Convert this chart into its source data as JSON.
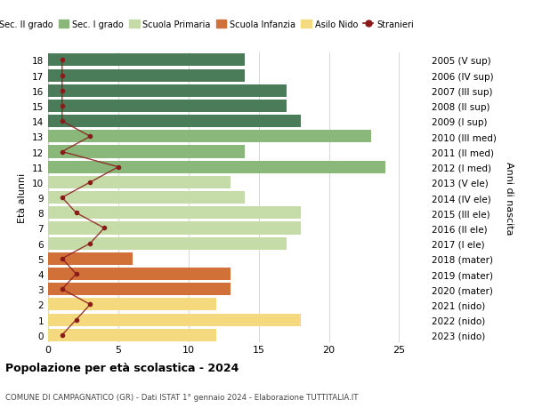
{
  "ages": [
    18,
    17,
    16,
    15,
    14,
    13,
    12,
    11,
    10,
    9,
    8,
    7,
    6,
    5,
    4,
    3,
    2,
    1,
    0
  ],
  "anni_nascita": [
    "2005 (V sup)",
    "2006 (IV sup)",
    "2007 (III sup)",
    "2008 (II sup)",
    "2009 (I sup)",
    "2010 (III med)",
    "2011 (II med)",
    "2012 (I med)",
    "2013 (V ele)",
    "2014 (IV ele)",
    "2015 (III ele)",
    "2016 (II ele)",
    "2017 (I ele)",
    "2018 (mater)",
    "2019 (mater)",
    "2020 (mater)",
    "2021 (nido)",
    "2022 (nido)",
    "2023 (nido)"
  ],
  "bar_values": [
    14,
    14,
    17,
    17,
    18,
    23,
    14,
    24,
    13,
    14,
    18,
    18,
    17,
    6,
    13,
    13,
    12,
    18,
    12
  ],
  "bar_colors": [
    "#4a7c59",
    "#4a7c59",
    "#4a7c59",
    "#4a7c59",
    "#4a7c59",
    "#8ab87a",
    "#8ab87a",
    "#8ab87a",
    "#c5dba8",
    "#c5dba8",
    "#c5dba8",
    "#c5dba8",
    "#c5dba8",
    "#d2703a",
    "#d2703a",
    "#d2703a",
    "#f5d97e",
    "#f5d97e",
    "#f5d97e"
  ],
  "stranieri_values": [
    1,
    1,
    1,
    1,
    1,
    3,
    1,
    5,
    3,
    1,
    2,
    4,
    3,
    1,
    2,
    1,
    3,
    2,
    1
  ],
  "color_sec2": "#4a7c59",
  "color_sec1": "#8ab87a",
  "color_primaria": "#c5dba8",
  "color_infanzia": "#d2703a",
  "color_nido": "#f5d97e",
  "color_stranieri": "#8b1a1a",
  "legend_labels": [
    "Sec. II grado",
    "Sec. I grado",
    "Scuola Primaria",
    "Scuola Infanzia",
    "Asilo Nido",
    "Stranieri"
  ],
  "ylabel_left": "Età alunni",
  "ylabel_right": "Anni di nascita",
  "title_main": "Popolazione per età scolastica - 2024",
  "title_sub": "COMUNE DI CAMPAGNATICO (GR) - Dati ISTAT 1° gennaio 2024 - Elaborazione TUTTITALIA.IT",
  "xlim": [
    0,
    27
  ],
  "xticks": [
    0,
    5,
    10,
    15,
    20,
    25
  ],
  "background_color": "#ffffff",
  "grid_color": "#d0d0d0"
}
